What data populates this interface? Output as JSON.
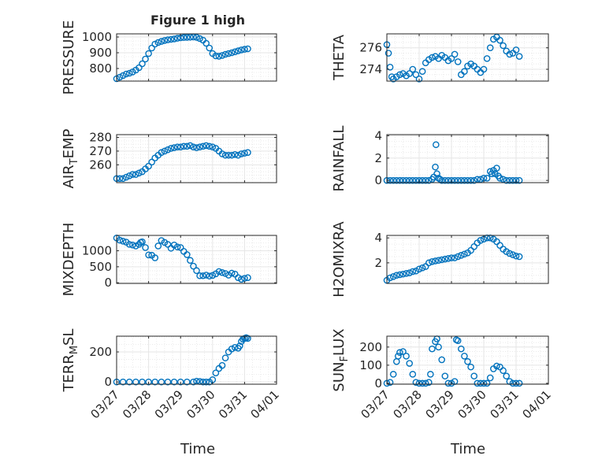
{
  "figure": {
    "title": "Figure 1 high",
    "xlabel": "Time"
  },
  "colors": {
    "marker": "#0072BD",
    "axis": "#262626",
    "grid": "#e6e6e6",
    "background": "#ffffff"
  },
  "xaxis": {
    "ticks": [
      "03/27",
      "03/28",
      "03/29",
      "03/30",
      "03/31",
      "04/01"
    ],
    "range_days": [
      0,
      5
    ]
  },
  "chart_data": [
    {
      "type": "scatter",
      "ylabel": "PRESSURE",
      "ylabel_sub": "",
      "ylim": [
        720,
        1020
      ],
      "yticks": [
        800,
        900,
        1000
      ],
      "ytick_labels": [
        "800",
        "900",
        "1000"
      ],
      "x": [
        0.0,
        0.1,
        0.2,
        0.3,
        0.4,
        0.5,
        0.6,
        0.7,
        0.8,
        0.9,
        1.0,
        1.1,
        1.2,
        1.3,
        1.4,
        1.5,
        1.6,
        1.7,
        1.8,
        1.9,
        2.0,
        2.1,
        2.2,
        2.3,
        2.4,
        2.5,
        2.6,
        2.7,
        2.8,
        2.9,
        3.0,
        3.1,
        3.2,
        3.3,
        3.4,
        3.5,
        3.6,
        3.7,
        3.8,
        3.9,
        4.0,
        4.1
      ],
      "y": [
        735,
        745,
        755,
        765,
        770,
        778,
        790,
        805,
        830,
        860,
        895,
        930,
        955,
        965,
        972,
        978,
        982,
        985,
        988,
        992,
        995,
        997,
        998,
        999,
        1000,
        998,
        990,
        980,
        960,
        930,
        895,
        880,
        878,
        883,
        890,
        895,
        900,
        906,
        912,
        918,
        922,
        925
      ]
    },
    {
      "type": "scatter",
      "ylabel": "THETA",
      "ylabel_sub": "",
      "ylim": [
        272.9,
        277.3
      ],
      "yticks": [
        274,
        276
      ],
      "ytick_labels": [
        "274",
        "276"
      ],
      "x": [
        0.0,
        0.05,
        0.1,
        0.15,
        0.2,
        0.3,
        0.4,
        0.5,
        0.6,
        0.7,
        0.8,
        0.9,
        1.0,
        1.1,
        1.2,
        1.3,
        1.4,
        1.5,
        1.6,
        1.7,
        1.8,
        1.9,
        2.0,
        2.1,
        2.2,
        2.3,
        2.4,
        2.5,
        2.6,
        2.7,
        2.8,
        2.9,
        3.0,
        3.1,
        3.2,
        3.3,
        3.4,
        3.5,
        3.6,
        3.7,
        3.8,
        3.9,
        4.0,
        4.1
      ],
      "y": [
        276.3,
        275.5,
        274.2,
        273.3,
        273.1,
        273.3,
        273.5,
        273.6,
        273.4,
        273.6,
        274.0,
        273.5,
        273.1,
        273.8,
        274.6,
        274.9,
        275.1,
        275.2,
        275.0,
        275.3,
        275.1,
        274.8,
        275.0,
        275.4,
        274.7,
        273.5,
        273.8,
        274.3,
        274.5,
        274.3,
        274.0,
        273.7,
        274.0,
        275.0,
        276.0,
        276.8,
        277.0,
        276.7,
        276.2,
        275.7,
        275.4,
        275.5,
        275.8,
        275.2
      ]
    },
    {
      "type": "scatter",
      "ylabel": "AIR",
      "ylabel_sub": "T",
      "ylabel_rest": "EMP",
      "ylim": [
        247,
        282
      ],
      "yticks": [
        260,
        270,
        280
      ],
      "ytick_labels": [
        "260",
        "270",
        "280"
      ],
      "x": [
        0.0,
        0.1,
        0.2,
        0.3,
        0.4,
        0.5,
        0.6,
        0.7,
        0.8,
        0.9,
        1.0,
        1.1,
        1.2,
        1.3,
        1.4,
        1.5,
        1.6,
        1.7,
        1.8,
        1.9,
        2.0,
        2.1,
        2.2,
        2.3,
        2.4,
        2.5,
        2.6,
        2.7,
        2.8,
        2.9,
        3.0,
        3.1,
        3.2,
        3.3,
        3.4,
        3.5,
        3.6,
        3.7,
        3.8,
        3.9,
        4.0,
        4.1
      ],
      "y": [
        250,
        250,
        250,
        251,
        252,
        253,
        253,
        254,
        255,
        257,
        259,
        262,
        265,
        267,
        269,
        270,
        271,
        272,
        272.5,
        273,
        273,
        273.5,
        273.5,
        274,
        273,
        272.5,
        273,
        273.5,
        274,
        273.5,
        273,
        272,
        270,
        268,
        267,
        267,
        267,
        267.5,
        267,
        268,
        268.5,
        269
      ]
    },
    {
      "type": "scatter",
      "ylabel": "RAINFALL",
      "ylabel_sub": "",
      "ylim": [
        -0.2,
        4.1
      ],
      "yticks": [
        0,
        2,
        4
      ],
      "ytick_labels": [
        "0",
        "2",
        "4"
      ],
      "x": [
        0.0,
        0.1,
        0.2,
        0.3,
        0.4,
        0.5,
        0.6,
        0.7,
        0.8,
        0.9,
        1.0,
        1.1,
        1.2,
        1.3,
        1.4,
        1.45,
        1.5,
        1.52,
        1.55,
        1.6,
        1.65,
        1.7,
        1.8,
        1.9,
        2.0,
        2.1,
        2.2,
        2.3,
        2.4,
        2.5,
        2.6,
        2.7,
        2.8,
        2.9,
        3.0,
        3.1,
        3.2,
        3.25,
        3.3,
        3.35,
        3.4,
        3.45,
        3.5,
        3.6,
        3.7,
        3.8,
        3.9,
        4.0,
        4.1
      ],
      "y": [
        0,
        0,
        0,
        0,
        0,
        0,
        0,
        0,
        0,
        0,
        0,
        0,
        0,
        0,
        0.1,
        0.3,
        1.2,
        3.2,
        0.6,
        0.2,
        0.1,
        0,
        0,
        0,
        0,
        0,
        0,
        0,
        0,
        0,
        0,
        0,
        0.1,
        0.1,
        0.2,
        0.2,
        0.8,
        0.6,
        0.9,
        0.6,
        1.1,
        0.4,
        0.2,
        0.1,
        0,
        0,
        0,
        0,
        0
      ]
    },
    {
      "type": "scatter",
      "ylabel": "MIXDEPTH",
      "ylabel_sub": "",
      "ylim": [
        -20,
        1480
      ],
      "yticks": [
        0,
        500,
        1000
      ],
      "ytick_labels": [
        "0",
        "500",
        "1000"
      ],
      "x": [
        0.0,
        0.1,
        0.2,
        0.3,
        0.4,
        0.5,
        0.6,
        0.7,
        0.75,
        0.8,
        0.9,
        1.0,
        1.1,
        1.2,
        1.3,
        1.4,
        1.5,
        1.6,
        1.7,
        1.8,
        1.9,
        2.0,
        2.1,
        2.2,
        2.3,
        2.4,
        2.5,
        2.6,
        2.7,
        2.8,
        2.9,
        3.0,
        3.1,
        3.2,
        3.3,
        3.4,
        3.5,
        3.6,
        3.7,
        3.8,
        3.9,
        4.0,
        4.1
      ],
      "y": [
        1400,
        1330,
        1300,
        1270,
        1200,
        1180,
        1150,
        1200,
        1260,
        1280,
        1100,
        870,
        860,
        780,
        1150,
        1320,
        1260,
        1200,
        1080,
        1180,
        1120,
        1100,
        980,
        880,
        700,
        520,
        380,
        220,
        220,
        240,
        210,
        230,
        280,
        350,
        320,
        290,
        240,
        300,
        270,
        160,
        110,
        140,
        160
      ]
    },
    {
      "type": "scatter",
      "ylabel": "H2OMIXRA",
      "ylabel_sub": "",
      "ylim": [
        0.35,
        4.2
      ],
      "yticks": [
        2,
        4
      ],
      "ytick_labels": [
        "2",
        "4"
      ],
      "x": [
        0.0,
        0.1,
        0.2,
        0.3,
        0.4,
        0.5,
        0.6,
        0.7,
        0.8,
        0.9,
        1.0,
        1.1,
        1.2,
        1.3,
        1.4,
        1.5,
        1.6,
        1.7,
        1.8,
        1.9,
        2.0,
        2.1,
        2.2,
        2.3,
        2.4,
        2.5,
        2.6,
        2.7,
        2.8,
        2.9,
        3.0,
        3.1,
        3.2,
        3.3,
        3.4,
        3.5,
        3.6,
        3.7,
        3.8,
        3.9,
        4.0,
        4.1
      ],
      "y": [
        0.6,
        0.8,
        0.9,
        1.0,
        1.05,
        1.1,
        1.15,
        1.2,
        1.3,
        1.35,
        1.5,
        1.6,
        1.7,
        2.0,
        2.1,
        2.15,
        2.2,
        2.25,
        2.3,
        2.35,
        2.4,
        2.4,
        2.5,
        2.6,
        2.7,
        2.8,
        3.0,
        3.3,
        3.6,
        3.8,
        3.9,
        4.0,
        4.0,
        3.9,
        3.7,
        3.4,
        3.1,
        2.9,
        2.75,
        2.65,
        2.55,
        2.5
      ]
    },
    {
      "type": "scatter",
      "ylabel": "TERR",
      "ylabel_sub": "M",
      "ylabel_rest": "SL",
      "ylim": [
        -15,
        305
      ],
      "yticks": [
        0,
        200
      ],
      "ytick_labels": [
        "0",
        "200"
      ],
      "x": [
        0.0,
        0.2,
        0.4,
        0.6,
        0.8,
        1.0,
        1.2,
        1.4,
        1.6,
        1.8,
        2.0,
        2.2,
        2.4,
        2.5,
        2.6,
        2.7,
        2.8,
        2.9,
        3.0,
        3.1,
        3.2,
        3.3,
        3.4,
        3.5,
        3.6,
        3.7,
        3.8,
        3.85,
        3.9,
        3.95,
        4.0,
        4.05,
        4.1
      ],
      "y": [
        0,
        0,
        0,
        0,
        0,
        0,
        0,
        0,
        0,
        0,
        0,
        0,
        0,
        5,
        3,
        0,
        0,
        0,
        15,
        60,
        90,
        110,
        160,
        200,
        220,
        230,
        225,
        240,
        270,
        285,
        290,
        295,
        290
      ]
    },
    {
      "type": "scatter",
      "ylabel": "SUN",
      "ylabel_sub": "F",
      "ylabel_rest": "LUX",
      "ylim": [
        -5,
        260
      ],
      "yticks": [
        0,
        100,
        200
      ],
      "ytick_labels": [
        "0",
        "100",
        "200"
      ],
      "x": [
        0.0,
        0.1,
        0.2,
        0.3,
        0.35,
        0.4,
        0.5,
        0.6,
        0.7,
        0.8,
        0.9,
        1.0,
        1.1,
        1.2,
        1.3,
        1.35,
        1.4,
        1.5,
        1.55,
        1.6,
        1.7,
        1.8,
        1.9,
        2.0,
        2.1,
        2.15,
        2.2,
        2.3,
        2.4,
        2.5,
        2.6,
        2.7,
        2.8,
        2.9,
        3.0,
        3.1,
        3.2,
        3.3,
        3.4,
        3.5,
        3.6,
        3.7,
        3.8,
        3.9,
        4.0,
        4.1
      ],
      "y": [
        0,
        5,
        50,
        120,
        150,
        170,
        175,
        150,
        110,
        50,
        5,
        0,
        0,
        0,
        5,
        50,
        190,
        230,
        245,
        200,
        130,
        40,
        0,
        0,
        10,
        240,
        235,
        190,
        150,
        120,
        90,
        40,
        0,
        0,
        0,
        0,
        30,
        80,
        95,
        90,
        70,
        40,
        10,
        0,
        0,
        0
      ]
    }
  ]
}
